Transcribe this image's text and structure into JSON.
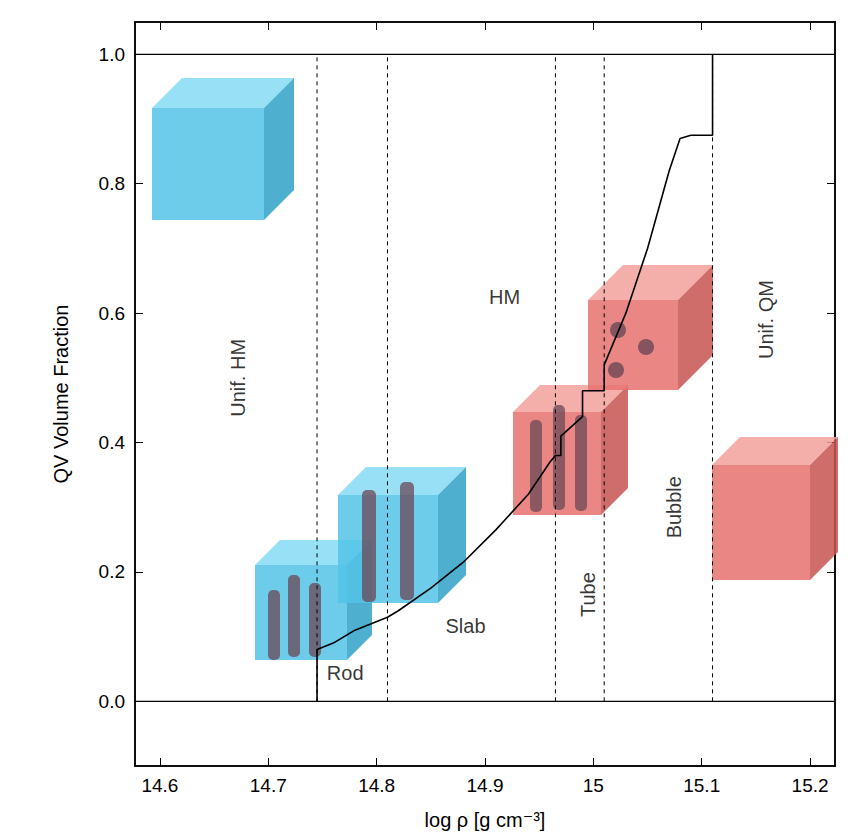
{
  "chart_data": {
    "type": "line",
    "xlabel": "log ρ [g cm⁻³]",
    "ylabel": "QV Volume Fraction",
    "x": [
      14.745,
      14.745,
      14.76,
      14.78,
      14.81,
      14.82,
      14.85,
      14.88,
      14.91,
      14.94,
      14.96,
      14.965,
      14.97,
      14.97,
      14.99,
      14.99,
      15.01,
      15.01,
      15.03,
      15.05,
      15.07,
      15.08,
      15.09,
      15.11,
      15.11
    ],
    "values": [
      0,
      0.08,
      0.09,
      0.11,
      0.13,
      0.14,
      0.175,
      0.215,
      0.265,
      0.32,
      0.37,
      0.38,
      0.38,
      0.41,
      0.44,
      0.48,
      0.48,
      0.52,
      0.6,
      0.7,
      0.82,
      0.87,
      0.875,
      0.875,
      1.0
    ],
    "color": "#000000",
    "line_style": "solid",
    "hlines": [
      0,
      1
    ],
    "vlines": [
      14.745,
      14.81,
      14.965,
      15.01,
      15.11
    ],
    "annotations": [
      {
        "text": "Unif. HM",
        "x": 14.672,
        "y": 0.5
      },
      {
        "text": "HM",
        "x": 14.918,
        "y": 0.625
      },
      {
        "text": "Unif. QM",
        "x": 15.159,
        "y": 0.59
      },
      {
        "text": "Rod",
        "x": 14.771,
        "y": 0.043
      },
      {
        "text": "Slab",
        "x": 14.882,
        "y": 0.116
      },
      {
        "text": "Tube",
        "x": 14.995,
        "y": 0.165
      },
      {
        "text": "Bubble",
        "x": 15.074,
        "y": 0.3
      }
    ],
    "xlim": [
      14.577,
      15.223
    ],
    "xticks": [
      14.6,
      14.7,
      14.8,
      14.9,
      15,
      15.1,
      15.2
    ],
    "ylim": [
      -0.1,
      1.05
    ],
    "yticks": [
      {
        "value": 0,
        "label": "0.0"
      },
      0.2,
      0.4,
      0.6,
      0.8,
      {
        "value": 1,
        "label": "1.0"
      }
    ],
    "grid": false
  }
}
